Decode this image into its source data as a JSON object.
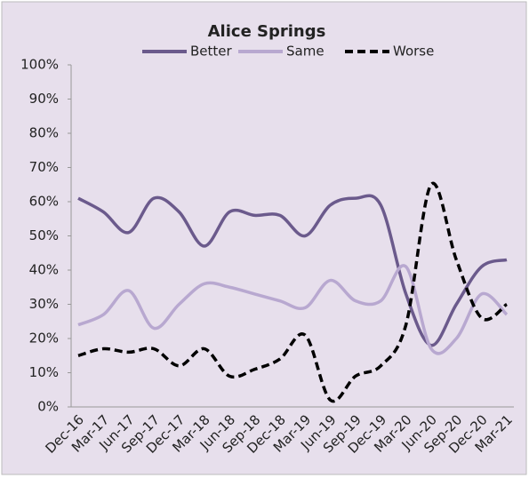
{
  "chart_data": {
    "type": "line",
    "title": "Alice Springs",
    "categories": [
      "Dec-16",
      "Mar-17",
      "Jun-17",
      "Sep-17",
      "Dec-17",
      "Mar-18",
      "Jun-18",
      "Sep-18",
      "Dec-18",
      "Mar-19",
      "Jun-19",
      "Sep-19",
      "Dec-19",
      "Mar-20",
      "Jun-20",
      "Sep-20",
      "Dec-20",
      "Mar-21"
    ],
    "series": [
      {
        "name": "Better",
        "color": "#6b5a8c",
        "dash": false,
        "values": [
          61,
          57,
          51,
          61,
          57,
          47,
          57,
          56,
          56,
          50,
          59,
          61,
          59,
          33,
          18,
          30,
          41,
          43
        ]
      },
      {
        "name": "Same",
        "color": "#b8a8d0",
        "dash": false,
        "values": [
          24,
          27,
          34,
          23,
          30,
          36,
          35,
          33,
          31,
          29,
          37,
          31,
          31,
          41,
          17,
          20,
          33,
          27
        ]
      },
      {
        "name": "Worse",
        "color": "#000000",
        "dash": true,
        "values": [
          15,
          17,
          16,
          17,
          12,
          17,
          9,
          11,
          14,
          21,
          2,
          9,
          12,
          24,
          65,
          43,
          26,
          30
        ]
      }
    ],
    "ylim": [
      0,
      100
    ],
    "yticks": [
      {
        "value": 0,
        "label": "0%"
      },
      {
        "value": 10,
        "label": "10%"
      },
      {
        "value": 20,
        "label": "20%"
      },
      {
        "value": 30,
        "label": "30%"
      },
      {
        "value": 40,
        "label": "40%"
      },
      {
        "value": 50,
        "label": "50%"
      },
      {
        "value": 60,
        "label": "60%"
      },
      {
        "value": 70,
        "label": "70%"
      },
      {
        "value": 80,
        "label": "80%"
      },
      {
        "value": 90,
        "label": "90%"
      },
      {
        "value": 100,
        "label": "100%"
      }
    ]
  }
}
